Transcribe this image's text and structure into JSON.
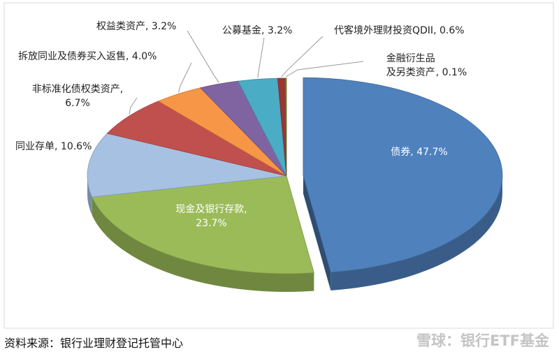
{
  "chart_data": {
    "type": "pie",
    "categories": [
      "债券",
      "现金及银行存款",
      "同业存单",
      "非标准化债权类资产",
      "拆放同业及债券买入返售",
      "权益类资产",
      "公募基金",
      "代客境外理财投资QDII",
      "金融衍生品及另类资产"
    ],
    "values": [
      47.7,
      23.7,
      10.6,
      6.7,
      4.0,
      3.2,
      3.2,
      0.6,
      0.1
    ],
    "value_labels": [
      "47.7%",
      "23.7%",
      "10.6%",
      "6.7%",
      "4.0%",
      "3.2%",
      "3.2%",
      "0.6%",
      "0.1%"
    ],
    "colors": [
      "#4f81bd",
      "#9bbb59",
      "#a7c1e3",
      "#c0504d",
      "#f79646",
      "#8064a2",
      "#4bacc6",
      "#9b3632",
      "#6e8f3c"
    ],
    "explode": [
      true,
      false,
      false,
      false,
      false,
      false,
      false,
      false,
      false
    ]
  },
  "source": "资料来源：银行业理财登记托管中心",
  "watermark": "雪球：银行ETF基金"
}
